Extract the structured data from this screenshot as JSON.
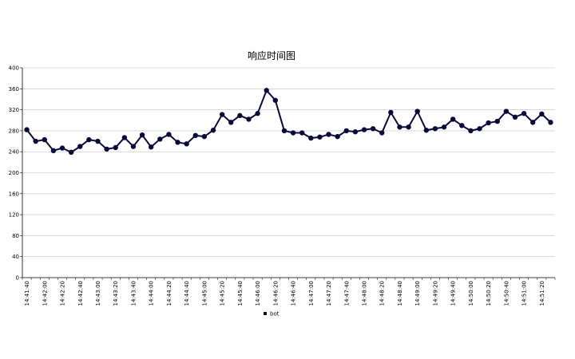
{
  "chart_data": {
    "type": "line",
    "title": "响应时间图",
    "xlabel": "",
    "ylabel": "",
    "ylim": [
      0,
      400
    ],
    "yticks": [
      0,
      40,
      80,
      120,
      160,
      200,
      240,
      280,
      320,
      360,
      400
    ],
    "grid": true,
    "legend_position": "bottom",
    "x_tick_labels": [
      "14:41:40",
      "14:42:00",
      "14:42:20",
      "14:42:40",
      "14:43:00",
      "14:43:20",
      "14:43:40",
      "14:44:00",
      "14:44:20",
      "14:44:40",
      "14:45:00",
      "14:45:20",
      "14:45:40",
      "14:46:00",
      "14:46:20",
      "14:46:40",
      "14:47:00",
      "14:47:20",
      "14:47:40",
      "14:48:00",
      "14:48:20",
      "14:48:40",
      "14:49:00",
      "14:49:20",
      "14:49:40",
      "14:50:00",
      "14:50:20",
      "14:50:40",
      "14:51:00",
      "14:51:20"
    ],
    "series": [
      {
        "name": "bot",
        "color": "#0a0a3a",
        "values": [
          282,
          260,
          263,
          242,
          247,
          239,
          250,
          263,
          260,
          245,
          248,
          267,
          250,
          272,
          249,
          264,
          273,
          258,
          255,
          271,
          269,
          281,
          311,
          296,
          309,
          302,
          313,
          357,
          338,
          280,
          276,
          276,
          266,
          268,
          273,
          269,
          280,
          278,
          282,
          284,
          276,
          315,
          287,
          287,
          317,
          281,
          284,
          287,
          302,
          290,
          280,
          284,
          295,
          298,
          317,
          306,
          313,
          296,
          312,
          296
        ]
      }
    ]
  }
}
